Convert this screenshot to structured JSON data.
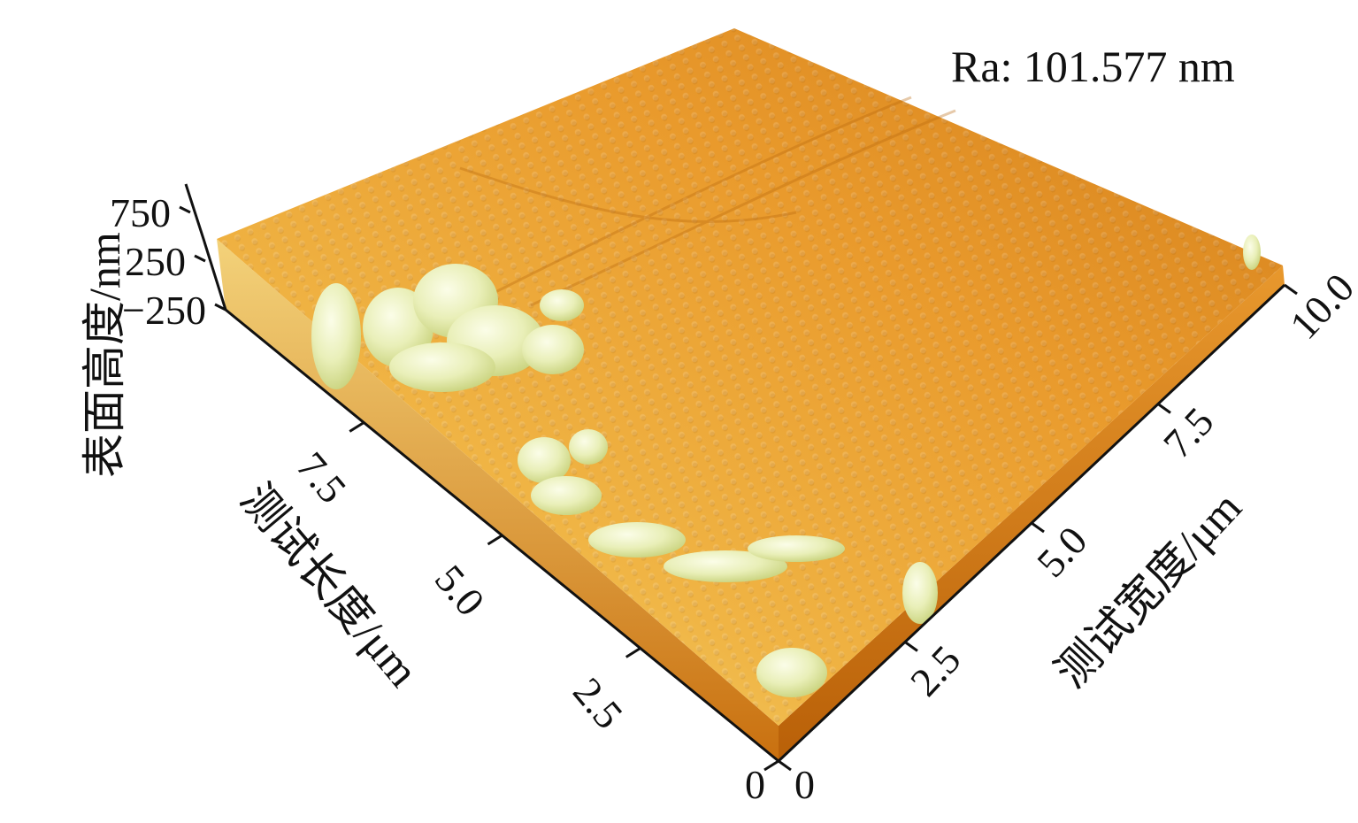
{
  "chart_data": {
    "type": "surface",
    "annotation": "Ra: 101.577 nm",
    "x_axis": {
      "label": "测试长度/μm",
      "range": [
        0,
        10
      ],
      "ticks": [
        0,
        2.5,
        5.0,
        7.5
      ],
      "tick_labels": [
        "0",
        "2.5",
        "5.0",
        "7.5"
      ]
    },
    "y_axis": {
      "label": "测试宽度/μm",
      "range": [
        0,
        10
      ],
      "ticks": [
        0,
        2.5,
        5.0,
        7.5,
        10.0
      ],
      "tick_labels": [
        "0",
        "2.5",
        "5.0",
        "7.5",
        "10.0"
      ]
    },
    "z_axis": {
      "label": "表面高度/nm",
      "ticks": [
        -250,
        250,
        750
      ],
      "tick_labels": [
        "−250",
        "250",
        "750"
      ]
    },
    "colormap": {
      "low": "#c96a08",
      "mid": "#eea12f",
      "high": "#f3f5d2"
    }
  }
}
